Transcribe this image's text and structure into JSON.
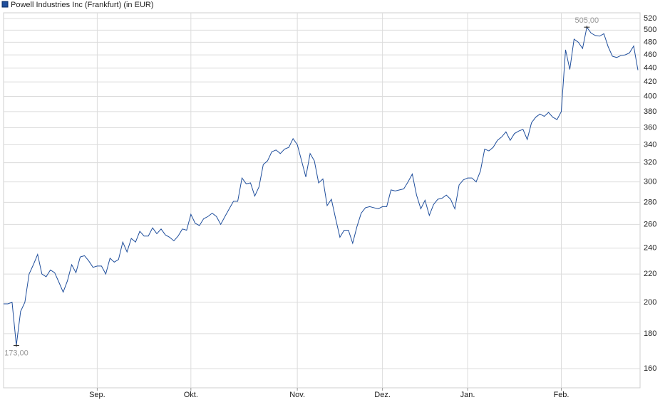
{
  "chart_data": {
    "type": "line",
    "title": "Powell Industries Inc (Frankfurt) (in EUR)",
    "series": [
      {
        "name": "Powell Industries Inc (Frankfurt) (in EUR)",
        "color": "#1f4e9c",
        "values": [
          199,
          199,
          200,
          173,
          194,
          200,
          220,
          227,
          235,
          220,
          218,
          223,
          221,
          214,
          207,
          215,
          227,
          221,
          233,
          234,
          230,
          225,
          226,
          226,
          220,
          232,
          229,
          231,
          245,
          237,
          248,
          245,
          254,
          250,
          250,
          257,
          252,
          256,
          251,
          249,
          246,
          250,
          256,
          255,
          269,
          261,
          259,
          265,
          267,
          270,
          267,
          260,
          267,
          274,
          281,
          281,
          304,
          298,
          299,
          286,
          295,
          318,
          322,
          332,
          334,
          330,
          335,
          337,
          347,
          340,
          322,
          305,
          330,
          322,
          299,
          303,
          277,
          283,
          265,
          249,
          255,
          255,
          244,
          258,
          270,
          275,
          276,
          275,
          274,
          276,
          276,
          292,
          291,
          292,
          293,
          300,
          308,
          287,
          274,
          282,
          268,
          278,
          283,
          284,
          287,
          283,
          274,
          297,
          302,
          304,
          304,
          300,
          311,
          335,
          333,
          337,
          345,
          349,
          355,
          345,
          353,
          356,
          358,
          346,
          366,
          373,
          377,
          374,
          379,
          373,
          370,
          380,
          468,
          438,
          485,
          480,
          470,
          505,
          495,
          491,
          490,
          494,
          473,
          458,
          456,
          459,
          460,
          463,
          474,
          437
        ],
        "value_labels": [
          null,
          null,
          null,
          "173,00",
          null,
          null,
          null,
          null,
          null,
          null,
          null,
          null,
          null,
          null,
          null,
          null,
          null,
          null,
          null,
          null,
          null,
          null,
          null,
          null,
          null,
          null,
          null,
          null,
          null,
          null,
          null,
          null,
          null,
          null,
          null,
          null,
          null,
          null,
          null,
          null,
          null,
          null,
          null,
          null,
          null,
          null,
          null,
          null,
          null,
          null,
          null,
          null,
          null,
          null,
          null,
          null,
          null,
          null,
          null,
          null,
          null,
          null,
          null,
          null,
          null,
          null,
          null,
          null,
          null,
          null,
          null,
          null,
          null,
          null,
          null,
          null,
          null,
          null,
          null,
          null,
          null,
          null,
          null,
          null,
          null,
          null,
          null,
          null,
          null,
          null,
          null,
          null,
          null,
          null,
          null,
          null,
          null,
          null,
          null,
          null,
          null,
          null,
          null,
          null,
          null,
          null,
          null,
          null,
          null,
          null,
          null,
          null,
          null,
          null,
          null,
          null,
          null,
          null,
          null,
          null,
          null,
          null,
          null,
          null,
          null,
          null,
          null,
          null,
          null,
          null,
          null,
          null,
          null,
          null,
          null,
          null,
          null,
          "505,00",
          null,
          null,
          null,
          null,
          null,
          null,
          null,
          null,
          null,
          null,
          null,
          null
        ]
      }
    ],
    "xlim": [
      0,
      149
    ],
    "xticks": [
      {
        "value": 22,
        "label": "Sep."
      },
      {
        "value": 44,
        "label": "Okt."
      },
      {
        "value": 69,
        "label": "Nov."
      },
      {
        "value": 89,
        "label": "Dez."
      },
      {
        "value": 109,
        "label": "Jan."
      },
      {
        "value": 131,
        "label": "Feb."
      }
    ],
    "ylim": [
      150,
      530
    ],
    "log_y": true,
    "yticks": [
      160,
      180,
      200,
      220,
      240,
      260,
      280,
      300,
      320,
      340,
      360,
      380,
      400,
      420,
      440,
      460,
      480,
      500,
      520
    ],
    "grid": true
  }
}
